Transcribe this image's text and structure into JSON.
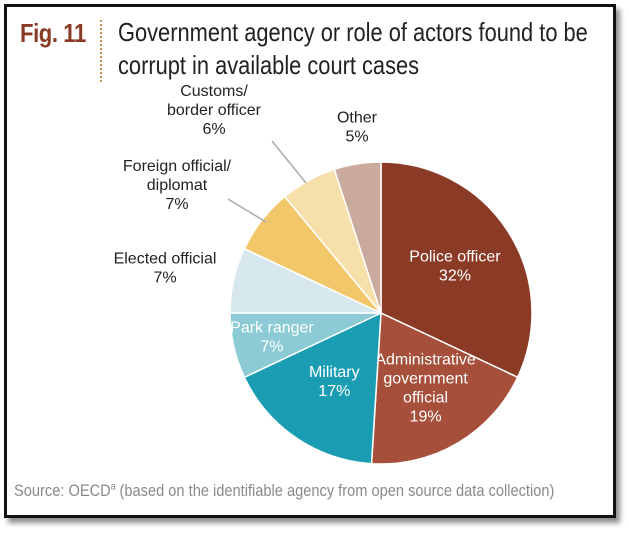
{
  "figure": {
    "label": "Fig. 11",
    "title_line1": "Government agency or role of actors found to be",
    "title_line2": "corrupt in available court cases",
    "source": "Source: OECD",
    "source_sup": "a",
    "source_rest": " (based on the identifiable agency from open source data collection)"
  },
  "chart_data": {
    "type": "pie",
    "unit": "%",
    "slices": [
      {
        "label": [
          "Police officer"
        ],
        "value": 32,
        "value_text": "32%",
        "color": "#8b3a26",
        "text_color": "#ffffff"
      },
      {
        "label": [
          "Administrative",
          "government",
          "official"
        ],
        "value": 19,
        "value_text": "19%",
        "color": "#a64f3a",
        "text_color": "#ffffff"
      },
      {
        "label": [
          "Military"
        ],
        "value": 17,
        "value_text": "17%",
        "color": "#1a9db3",
        "text_color": "#ffffff"
      },
      {
        "label": [
          "Park ranger"
        ],
        "value": 7,
        "value_text": "7%",
        "color": "#8ccad5",
        "text_color": "#ffffff"
      },
      {
        "label": [
          "Elected official"
        ],
        "value": 7,
        "value_text": "7%",
        "color": "#d6e8ee",
        "text_color": "#222222"
      },
      {
        "label": [
          "Foreign official/",
          "diplomat"
        ],
        "value": 7,
        "value_text": "7%",
        "color": "#f2c76a",
        "text_color": "#222222"
      },
      {
        "label": [
          "Customs/",
          "border officer"
        ],
        "value": 6,
        "value_text": "6%",
        "color": "#f7dfaa",
        "text_color": "#222222"
      },
      {
        "label": [
          "Other"
        ],
        "value": 5,
        "value_text": "5%",
        "color": "#c9aa9c",
        "text_color": "#222222"
      }
    ]
  }
}
